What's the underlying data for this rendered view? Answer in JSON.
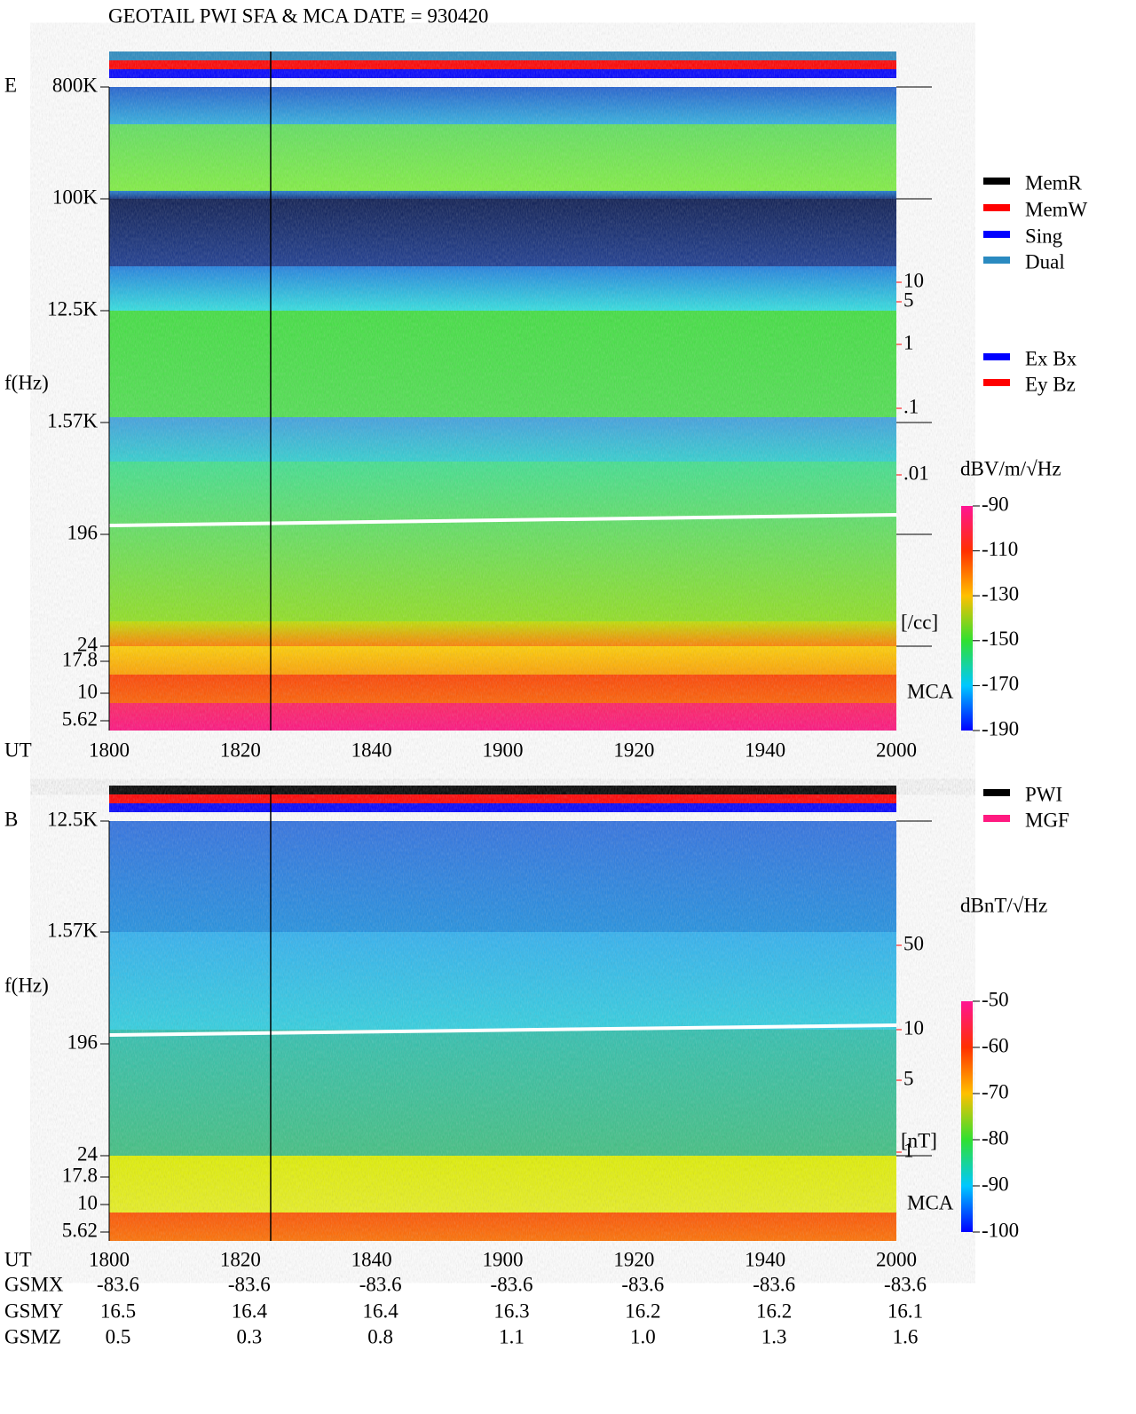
{
  "title": "GEOTAIL   PWI SFA & MCA   DATE = 930420",
  "panels": [
    {
      "component": "E",
      "freq_label": "f(Hz)",
      "freq_ticks": [
        "800K",
        "100K",
        "12.5K",
        "1.57K",
        "196",
        "24",
        "17.8",
        "10",
        "5.62"
      ],
      "time_label": "UT",
      "time_ticks": [
        "1800",
        "1820",
        "1840",
        "1900",
        "1920",
        "1940",
        "2000"
      ],
      "legend": [
        {
          "name": "MemR",
          "color": "#000000"
        },
        {
          "name": "MemW",
          "color": "#ff0000"
        },
        {
          "name": "Sing",
          "color": "#0000ff"
        },
        {
          "name": "Dual",
          "color": "#2a8ac0"
        }
      ],
      "antenna_legend": [
        {
          "name": "Ex Bx",
          "color": "#0000ff"
        },
        {
          "name": "Ey Bz",
          "color": "#ff0000"
        }
      ],
      "scale_ticks": [
        "10",
        "5",
        "1",
        ".1",
        ".01"
      ],
      "scale_unit": "[/cc]",
      "mca_label": "MCA",
      "colorbar": {
        "unit": "dBV/m/√Hz",
        "range": [
          -190,
          -90
        ],
        "ticks": [
          -90,
          -110,
          -130,
          -150,
          -170,
          -190
        ]
      }
    },
    {
      "component": "B",
      "freq_label": "f(Hz)",
      "freq_ticks": [
        "12.5K",
        "1.57K",
        "196",
        "24",
        "17.8",
        "10",
        "5.62"
      ],
      "time_label": "UT",
      "time_ticks": [
        "1800",
        "1820",
        "1840",
        "1900",
        "1920",
        "1940",
        "2000"
      ],
      "legend": [
        {
          "name": "PWI",
          "color": "#000000"
        },
        {
          "name": "MGF",
          "color": "#ff1a80"
        }
      ],
      "scale_ticks": [
        "50",
        "10",
        "5",
        "1"
      ],
      "scale_unit": "[nT]",
      "mca_label": "MCA",
      "colorbar": {
        "unit": "dBnT/√Hz",
        "range": [
          -100,
          -50
        ],
        "ticks": [
          -50,
          -60,
          -70,
          -80,
          -90,
          -100
        ]
      }
    }
  ],
  "orbit": {
    "rows": [
      {
        "label": "GSMX",
        "values": [
          "-83.6",
          "-83.6",
          "-83.6",
          "-83.6",
          "-83.6",
          "-83.6",
          "-83.6"
        ]
      },
      {
        "label": "GSMY",
        "values": [
          "16.5",
          "16.4",
          "16.4",
          "16.3",
          "16.2",
          "16.2",
          "16.1"
        ]
      },
      {
        "label": "GSMZ",
        "values": [
          "0.5",
          "0.3",
          "0.8",
          "1.1",
          "1.0",
          "1.3",
          "1.6"
        ]
      }
    ]
  }
}
